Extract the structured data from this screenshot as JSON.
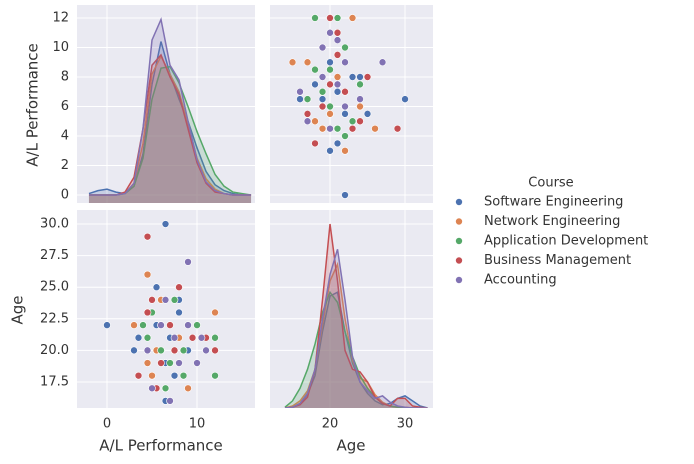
{
  "chart_data": [
    {
      "type": "area",
      "ylabel": "A/L Performance",
      "legend_title": "Course",
      "xlim": [
        -3.33,
        16.44
      ],
      "ylim": [
        -0.54,
        12.88
      ],
      "xticks": [
        0,
        10
      ],
      "yticks": [
        0,
        2,
        4,
        6,
        8,
        10,
        12
      ],
      "x": [
        -2,
        -1,
        0,
        1,
        2,
        3,
        4,
        5,
        6,
        7,
        8,
        9,
        10,
        11,
        12,
        13,
        14,
        15,
        16
      ],
      "series": [
        {
          "name": "Software Engineering",
          "color": "#4c72b0",
          "values": [
            0.1,
            0.3,
            0.4,
            0.2,
            0.1,
            0.6,
            2.8,
            7.5,
            10.4,
            8.2,
            6.5,
            5,
            3.2,
            1.6,
            0.7,
            0.3,
            0.1,
            0,
            0
          ]
        },
        {
          "name": "Network Engineering",
          "color": "#dd8452",
          "values": [
            0,
            0,
            0,
            0,
            0.1,
            0.8,
            3.5,
            8.2,
            9.4,
            8.2,
            7,
            4.8,
            2.5,
            1.1,
            0.4,
            0.1,
            0,
            0,
            0
          ]
        },
        {
          "name": "Application Development",
          "color": "#55a868",
          "values": [
            0,
            0,
            0,
            0,
            0.1,
            0.6,
            2.5,
            6.5,
            8.6,
            8.7,
            7.6,
            6,
            4.3,
            2.8,
            1.4,
            0.6,
            0.2,
            0.1,
            0
          ]
        },
        {
          "name": "Business Management",
          "color": "#c44e52",
          "values": [
            0,
            0,
            0,
            0,
            0.2,
            1.2,
            4.5,
            8.8,
            9.5,
            8,
            6.8,
            4.5,
            2.2,
            0.8,
            0.2,
            0.1,
            0,
            0,
            0
          ]
        },
        {
          "name": "Accounting",
          "color": "#8172b3",
          "values": [
            0,
            0,
            0,
            0,
            0.1,
            0.8,
            4.5,
            10.5,
            11.9,
            8.8,
            7.8,
            5,
            2.4,
            0.9,
            0.3,
            0.1,
            0,
            0,
            0
          ]
        }
      ]
    },
    {
      "type": "scatter",
      "xlim": [
        12,
        33.73
      ],
      "ylim": [
        -0.54,
        12.88
      ],
      "xticks": [
        20,
        30
      ],
      "yticks": [
        0,
        2,
        4,
        6,
        8,
        10,
        12
      ],
      "series": [
        {
          "color": "#4c72b0",
          "x": [
            22,
            20,
            21,
            30,
            24,
            21,
            19,
            16,
            22,
            25,
            21,
            23,
            20,
            18
          ],
          "values": [
            0,
            3,
            3.5,
            6.5,
            8,
            7,
            6.5,
            6.5,
            5.5,
            5.5,
            4.5,
            8,
            9,
            7.5
          ]
        },
        {
          "color": "#dd8452",
          "x": [
            23,
            17,
            15,
            22,
            26,
            18,
            19,
            21,
            24,
            20,
            17,
            22
          ],
          "values": [
            12,
            9,
            9,
            3,
            4.5,
            5,
            4.5,
            8,
            6,
            5.5,
            6.5,
            6
          ]
        },
        {
          "color": "#55a868",
          "x": [
            18,
            21,
            22,
            18,
            17,
            20,
            23,
            21,
            19,
            22,
            24,
            20
          ],
          "values": [
            12,
            12,
            10,
            8.5,
            6.5,
            8.5,
            5,
            4.5,
            7,
            4,
            7.5,
            6
          ]
        },
        {
          "color": "#c44e52",
          "x": [
            20,
            21,
            21,
            17,
            29,
            18,
            25,
            22,
            23,
            19,
            24,
            20
          ],
          "values": [
            12,
            11,
            9.5,
            5.5,
            4.5,
            3.5,
            8,
            7,
            4.5,
            6,
            5,
            7.5
          ]
        },
        {
          "color": "#8172b3",
          "x": [
            19,
            22,
            27,
            20,
            21,
            16,
            17,
            21,
            22,
            24,
            19,
            20
          ],
          "values": [
            10,
            9,
            9,
            11,
            10.5,
            7,
            5,
            7.5,
            6,
            6.5,
            8,
            4.5
          ]
        }
      ]
    },
    {
      "type": "scatter",
      "xlabel": "A/L Performance",
      "ylabel": "Age",
      "xlim": [
        -3.33,
        16.44
      ],
      "ylim": [
        15.44,
        31.11
      ],
      "xticks": [
        0,
        10
      ],
      "yticks": [
        17.5,
        {
          "value": 20,
          "label": "20.0"
        },
        22.5,
        {
          "value": 25,
          "label": "25.0"
        },
        27.5,
        {
          "value": 30,
          "label": "30.0"
        }
      ],
      "series": [
        {
          "color": "#4c72b0",
          "x": [
            0,
            3,
            3.5,
            6.5,
            8,
            7,
            6.5,
            6.5,
            5.5,
            5.5,
            4.5,
            8,
            9,
            7.5
          ],
          "values": [
            22,
            20,
            21,
            30,
            24,
            21,
            19,
            16,
            22,
            25,
            21,
            23,
            20,
            18
          ]
        },
        {
          "color": "#dd8452",
          "x": [
            12,
            9,
            9,
            3,
            4.5,
            5,
            4.5,
            8,
            6,
            5.5,
            6.5,
            6
          ],
          "values": [
            23,
            17,
            15,
            22,
            26,
            18,
            19,
            21,
            24,
            20,
            17,
            22
          ]
        },
        {
          "color": "#55a868",
          "x": [
            12,
            12,
            10,
            8.5,
            6.5,
            8.5,
            5,
            4.5,
            7,
            4,
            7.5,
            6
          ],
          "values": [
            18,
            21,
            22,
            18,
            17,
            20,
            23,
            21,
            19,
            22,
            24,
            20
          ]
        },
        {
          "color": "#c44e52",
          "x": [
            12,
            11,
            9.5,
            5.5,
            4.5,
            3.5,
            8,
            7,
            4.5,
            6,
            5,
            7.5
          ],
          "values": [
            20,
            21,
            21,
            17,
            29,
            18,
            25,
            22,
            23,
            19,
            24,
            20
          ]
        },
        {
          "color": "#8172b3",
          "x": [
            10,
            9,
            9,
            11,
            10.5,
            7,
            5,
            7.5,
            6,
            6.5,
            8,
            4.5
          ],
          "values": [
            19,
            22,
            27,
            20,
            21,
            16,
            17,
            21,
            22,
            24,
            19,
            20
          ]
        }
      ]
    },
    {
      "type": "area",
      "xlabel": "Age",
      "xlim": [
        12,
        33.73
      ],
      "ylim": [
        15.44,
        31.11
      ],
      "xticks": [
        20,
        30
      ],
      "yticks": [
        17.5,
        {
          "value": 20,
          "label": "20.0"
        },
        22.5,
        {
          "value": 25,
          "label": "25.0"
        },
        27.5,
        {
          "value": 30,
          "label": "30.0"
        }
      ],
      "x": [
        14,
        15,
        16,
        17,
        18,
        19,
        20,
        21,
        22,
        23,
        24,
        25,
        26,
        27,
        28,
        29,
        30,
        31,
        32,
        33
      ],
      "series": [
        {
          "color": "#4c72b0",
          "values": [
            15.44,
            15.5,
            15.8,
            16.5,
            18,
            21.5,
            24.3,
            24.6,
            21.5,
            19,
            17.5,
            16.6,
            16,
            15.7,
            15.8,
            16.2,
            16.4,
            16,
            15.6,
            15.44
          ]
        },
        {
          "color": "#dd8452",
          "values": [
            15.44,
            15.6,
            16,
            16.8,
            18.5,
            22,
            25.5,
            26.8,
            22.5,
            19.2,
            17.8,
            17.5,
            16.5,
            15.9,
            15.6,
            15.5,
            15.5,
            15.44,
            15.44,
            15.44
          ]
        },
        {
          "color": "#55a868",
          "values": [
            15.5,
            16,
            17,
            18.5,
            20.5,
            23,
            24.6,
            23.8,
            21.5,
            19.5,
            18,
            17,
            16.3,
            15.8,
            15.6,
            15.5,
            15.44,
            15.44,
            15.44,
            15.44
          ]
        },
        {
          "color": "#c44e52",
          "values": [
            15.44,
            15.5,
            15.7,
            16.3,
            18.5,
            24,
            30,
            25.5,
            20,
            18.5,
            18.3,
            17.5,
            16.3,
            15.8,
            15.6,
            16.2,
            16.2,
            15.6,
            15.5,
            15.44
          ]
        },
        {
          "color": "#8172b3",
          "values": [
            15.44,
            15.5,
            15.8,
            16.6,
            18.5,
            22.5,
            26,
            28,
            24,
            19.5,
            17.5,
            16.8,
            16.2,
            16.4,
            15.9,
            15.6,
            15.5,
            15.44,
            15.44,
            15.44
          ]
        }
      ]
    }
  ]
}
